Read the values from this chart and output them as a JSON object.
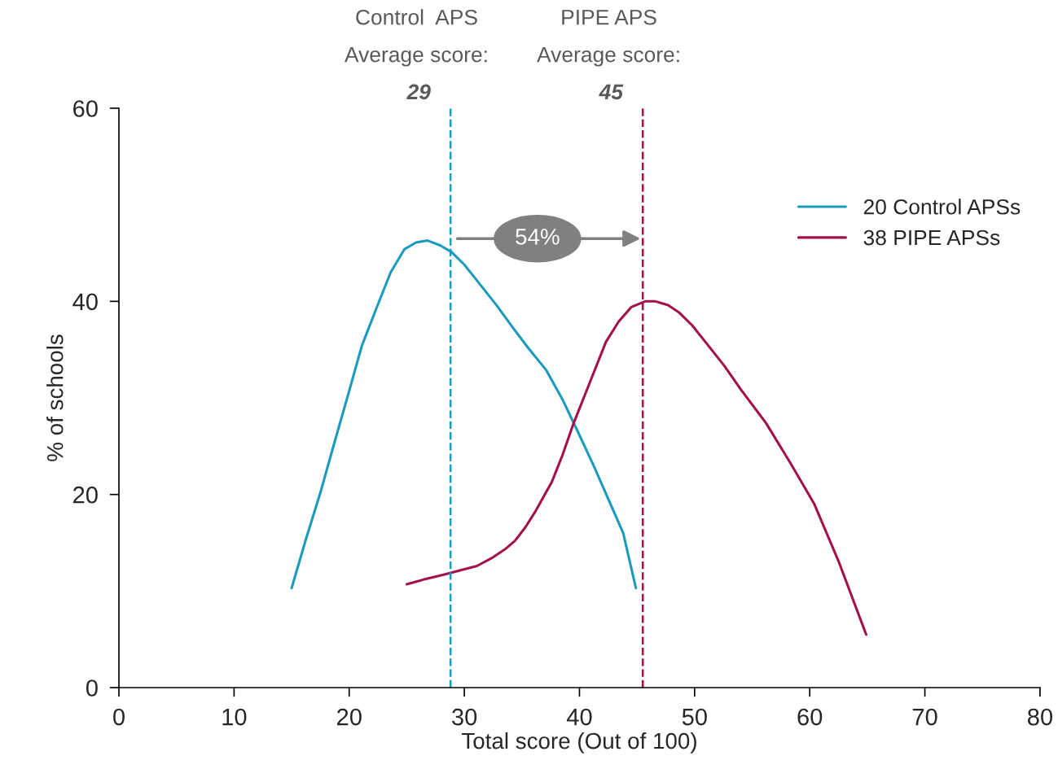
{
  "chart_data": {
    "type": "line",
    "xlabel": "Total score (Out of 100)",
    "ylabel": "% of schools",
    "xlim": [
      0,
      80
    ],
    "xticks": [
      0,
      10,
      20,
      30,
      40,
      50,
      60,
      70,
      80
    ],
    "ylim": [
      0,
      60
    ],
    "yticks": [
      0,
      20,
      40,
      60
    ],
    "grid": false,
    "legend": "right",
    "marker": "none",
    "line_style": "solid",
    "series": [
      {
        "name": "20 Control APSs",
        "color": "#1a9bbd",
        "x": [
          15.0,
          16.2,
          17.5,
          18.7,
          19.9,
          21.1,
          22.4,
          23.6,
          24.8,
          25.8,
          26.8,
          27.9,
          28.9,
          30.0,
          31.4,
          32.8,
          34.2,
          35.6,
          37.1,
          38.5,
          39.9,
          41.3,
          42.7,
          43.8,
          44.9
        ],
        "values": [
          10.3,
          15.2,
          20.2,
          25.3,
          30.3,
          35.4,
          39.4,
          43.0,
          45.4,
          46.1,
          46.3,
          45.8,
          45.1,
          43.8,
          41.7,
          39.6,
          37.3,
          35.1,
          32.9,
          29.9,
          26.4,
          22.8,
          19.0,
          16.0,
          10.3
        ]
      },
      {
        "name": "38 PIPE APSs",
        "color": "#a3104a",
        "x": [
          25.0,
          26.5,
          28.2,
          31.1,
          32.5,
          33.5,
          34.4,
          35.3,
          36.2,
          36.9,
          37.6,
          38.5,
          39.5,
          40.9,
          42.3,
          43.4,
          44.5,
          45.7,
          46.6,
          47.7,
          48.7,
          49.8,
          51.2,
          52.6,
          54.0,
          56.2,
          58.3,
          60.4,
          62.5,
          64.9
        ],
        "values": [
          10.7,
          11.2,
          11.7,
          12.6,
          13.5,
          14.3,
          15.2,
          16.6,
          18.3,
          19.8,
          21.3,
          24.0,
          27.4,
          31.6,
          35.8,
          37.9,
          39.4,
          40.0,
          40.0,
          39.6,
          38.8,
          37.5,
          35.4,
          33.3,
          30.9,
          27.4,
          23.3,
          19.0,
          13.1,
          5.5
        ]
      }
    ],
    "ref_lines": [
      {
        "axis": "x",
        "value": 28.8,
        "label": "Control  APS\nAverage score:\n29",
        "color": "#1a9bbd",
        "line_style": "dashed"
      },
      {
        "axis": "x",
        "value": 45.5,
        "label": "PIPE APS\nAverage score:\n45",
        "color": "#a3104a",
        "line_style": "dashed"
      }
    ],
    "annotations": [
      "54%"
    ]
  }
}
